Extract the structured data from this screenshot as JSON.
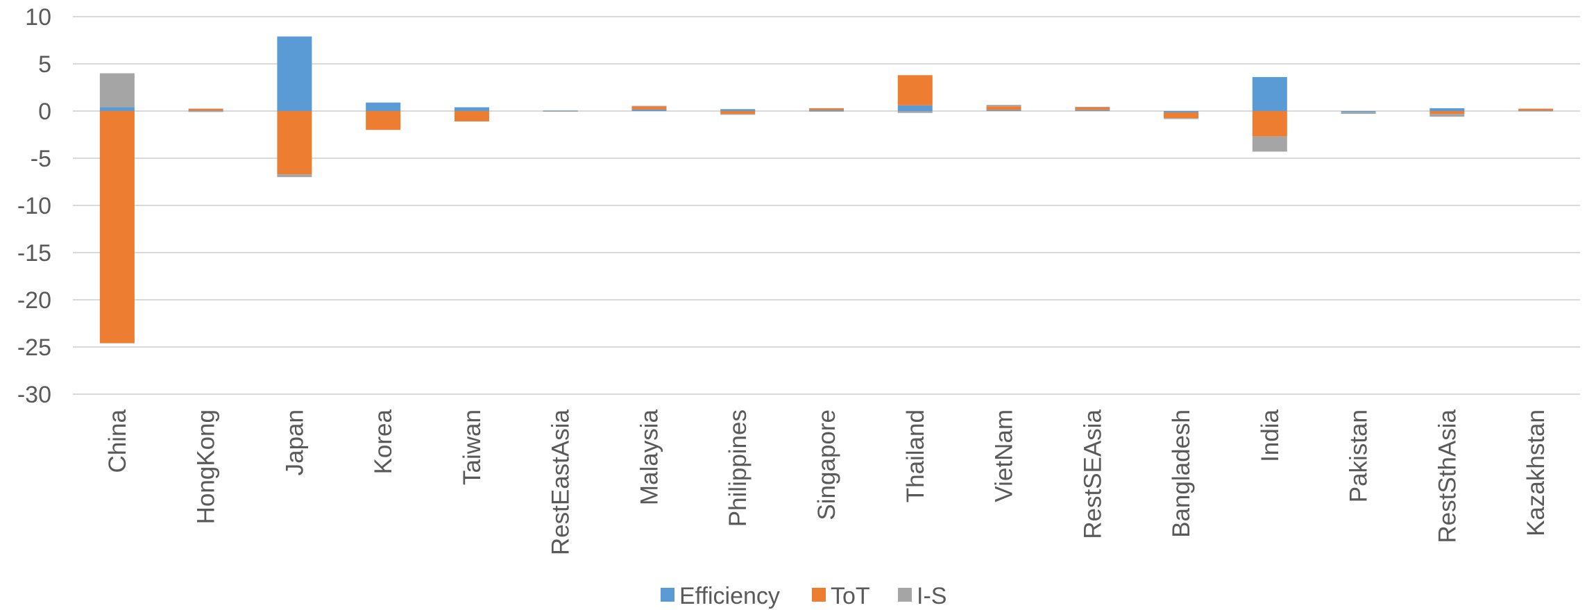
{
  "chart_data": {
    "type": "bar",
    "stacked": true,
    "title": "",
    "xlabel": "",
    "ylabel": "",
    "ylim": [
      -30,
      10
    ],
    "yticks": [
      10,
      5,
      0,
      -5,
      -10,
      -15,
      -20,
      -25,
      -30
    ],
    "grid": true,
    "legend_position": "bottom",
    "categories": [
      "China",
      "HongKong",
      "Japan",
      "Korea",
      "Taiwan",
      "RestEastAsia",
      "Malaysia",
      "Philippines",
      "Singapore",
      "Thailand",
      "VietNam",
      "RestSEAsia",
      "Bangladesh",
      "India",
      "Pakistan",
      "RestSthAsia",
      "Kazakhstan"
    ],
    "series": [
      {
        "name": "Efficiency",
        "color": "#5b9bd5",
        "values": [
          0.4,
          0.05,
          7.9,
          0.9,
          0.4,
          0.05,
          0.15,
          0.2,
          0.1,
          0.6,
          0.1,
          0.1,
          -0.15,
          3.6,
          -0.1,
          0.3,
          0.05
        ]
      },
      {
        "name": "ToT",
        "color": "#ed7d31",
        "values": [
          -24.6,
          0.2,
          -6.7,
          -2.0,
          -1.1,
          0.0,
          0.35,
          -0.3,
          0.2,
          3.2,
          0.4,
          0.3,
          -0.6,
          -2.7,
          0.0,
          -0.3,
          0.2
        ]
      },
      {
        "name": "I-S",
        "color": "#a5a5a5",
        "values": [
          3.6,
          -0.1,
          -0.3,
          0.0,
          0.0,
          -0.05,
          0.05,
          -0.1,
          -0.05,
          -0.2,
          0.15,
          0.05,
          -0.1,
          -1.6,
          -0.2,
          -0.3,
          0.0
        ]
      }
    ]
  }
}
